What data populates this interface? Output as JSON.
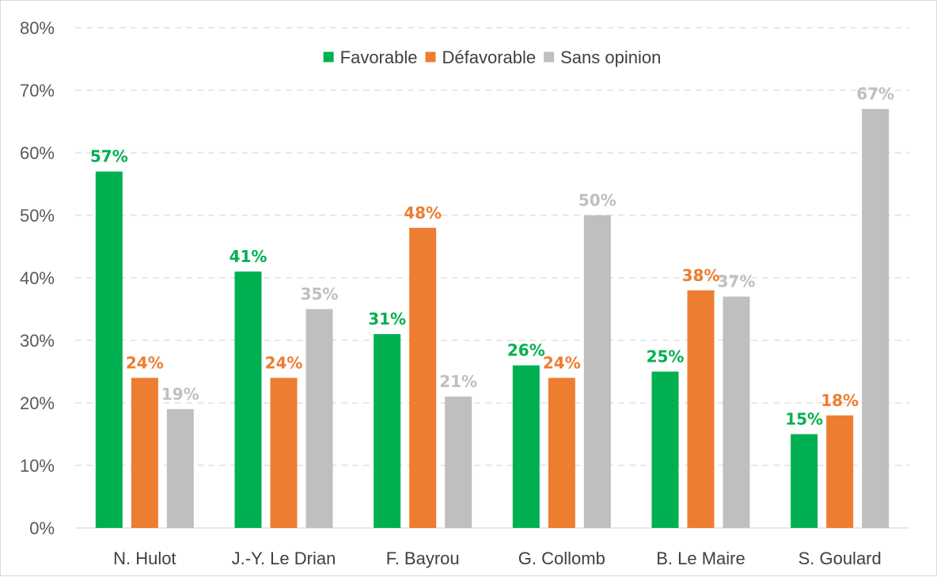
{
  "chart_data": {
    "type": "bar",
    "categories": [
      "N. Hulot",
      "J.-Y. Le Drian",
      "F. Bayrou",
      "G. Collomb",
      "B. Le Maire",
      "S. Goulard"
    ],
    "series": [
      {
        "name": "Favorable",
        "color": "#00b050",
        "values": [
          57,
          41,
          31,
          26,
          25,
          15
        ]
      },
      {
        "name": "Défavorable",
        "color": "#ed7d31",
        "values": [
          24,
          24,
          48,
          24,
          38,
          18
        ]
      },
      {
        "name": "Sans opinion",
        "color": "#bfbfbf",
        "values": [
          19,
          35,
          21,
          50,
          37,
          67
        ]
      }
    ],
    "value_suffix": "%",
    "ylim": [
      0,
      80
    ],
    "y_ticks": [
      "0%",
      "10%",
      "20%",
      "30%",
      "40%",
      "50%",
      "60%",
      "70%",
      "80%"
    ],
    "grid": true,
    "legend_position": "top-center",
    "data_labels": true,
    "title": "",
    "xlabel": "",
    "ylabel": ""
  }
}
